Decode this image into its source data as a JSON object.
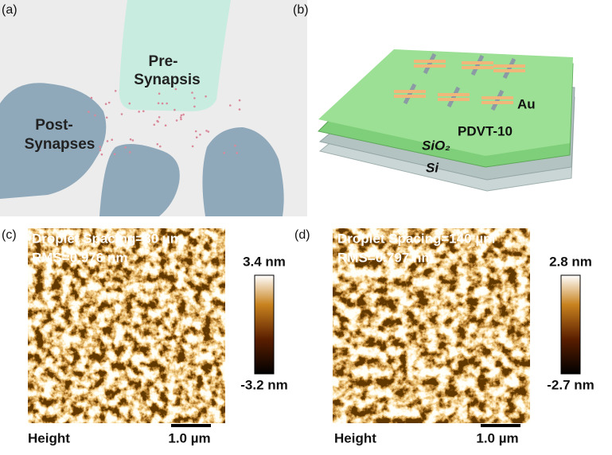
{
  "panel_a": {
    "label": "(a)",
    "pre_synapsis": [
      "Pre-",
      "Synapsis"
    ],
    "post_synapses": [
      "Post-",
      "Synapses"
    ]
  },
  "panel_b": {
    "label": "(b)",
    "electrode": "Au",
    "semiconductor": "PDVT-10",
    "dielectric": "SiO₂",
    "substrate": "Si"
  },
  "panel_c": {
    "label": "(c)",
    "title": "Droplet Spacing=80 µm",
    "rms": "RMS=0.976 nm",
    "colorbar_max": "3.4 nm",
    "colorbar_min": "-3.2 nm",
    "channel": "Height",
    "scale_bar": "1.0 µm"
  },
  "panel_d": {
    "label": "(d)",
    "title": "Droplet Spacing=140 µm",
    "rms": "RMS=0.797 nm",
    "colorbar_max": "2.8 nm",
    "colorbar_min": "-2.7 nm",
    "channel": "Height",
    "scale_bar": "1.0 µm"
  }
}
